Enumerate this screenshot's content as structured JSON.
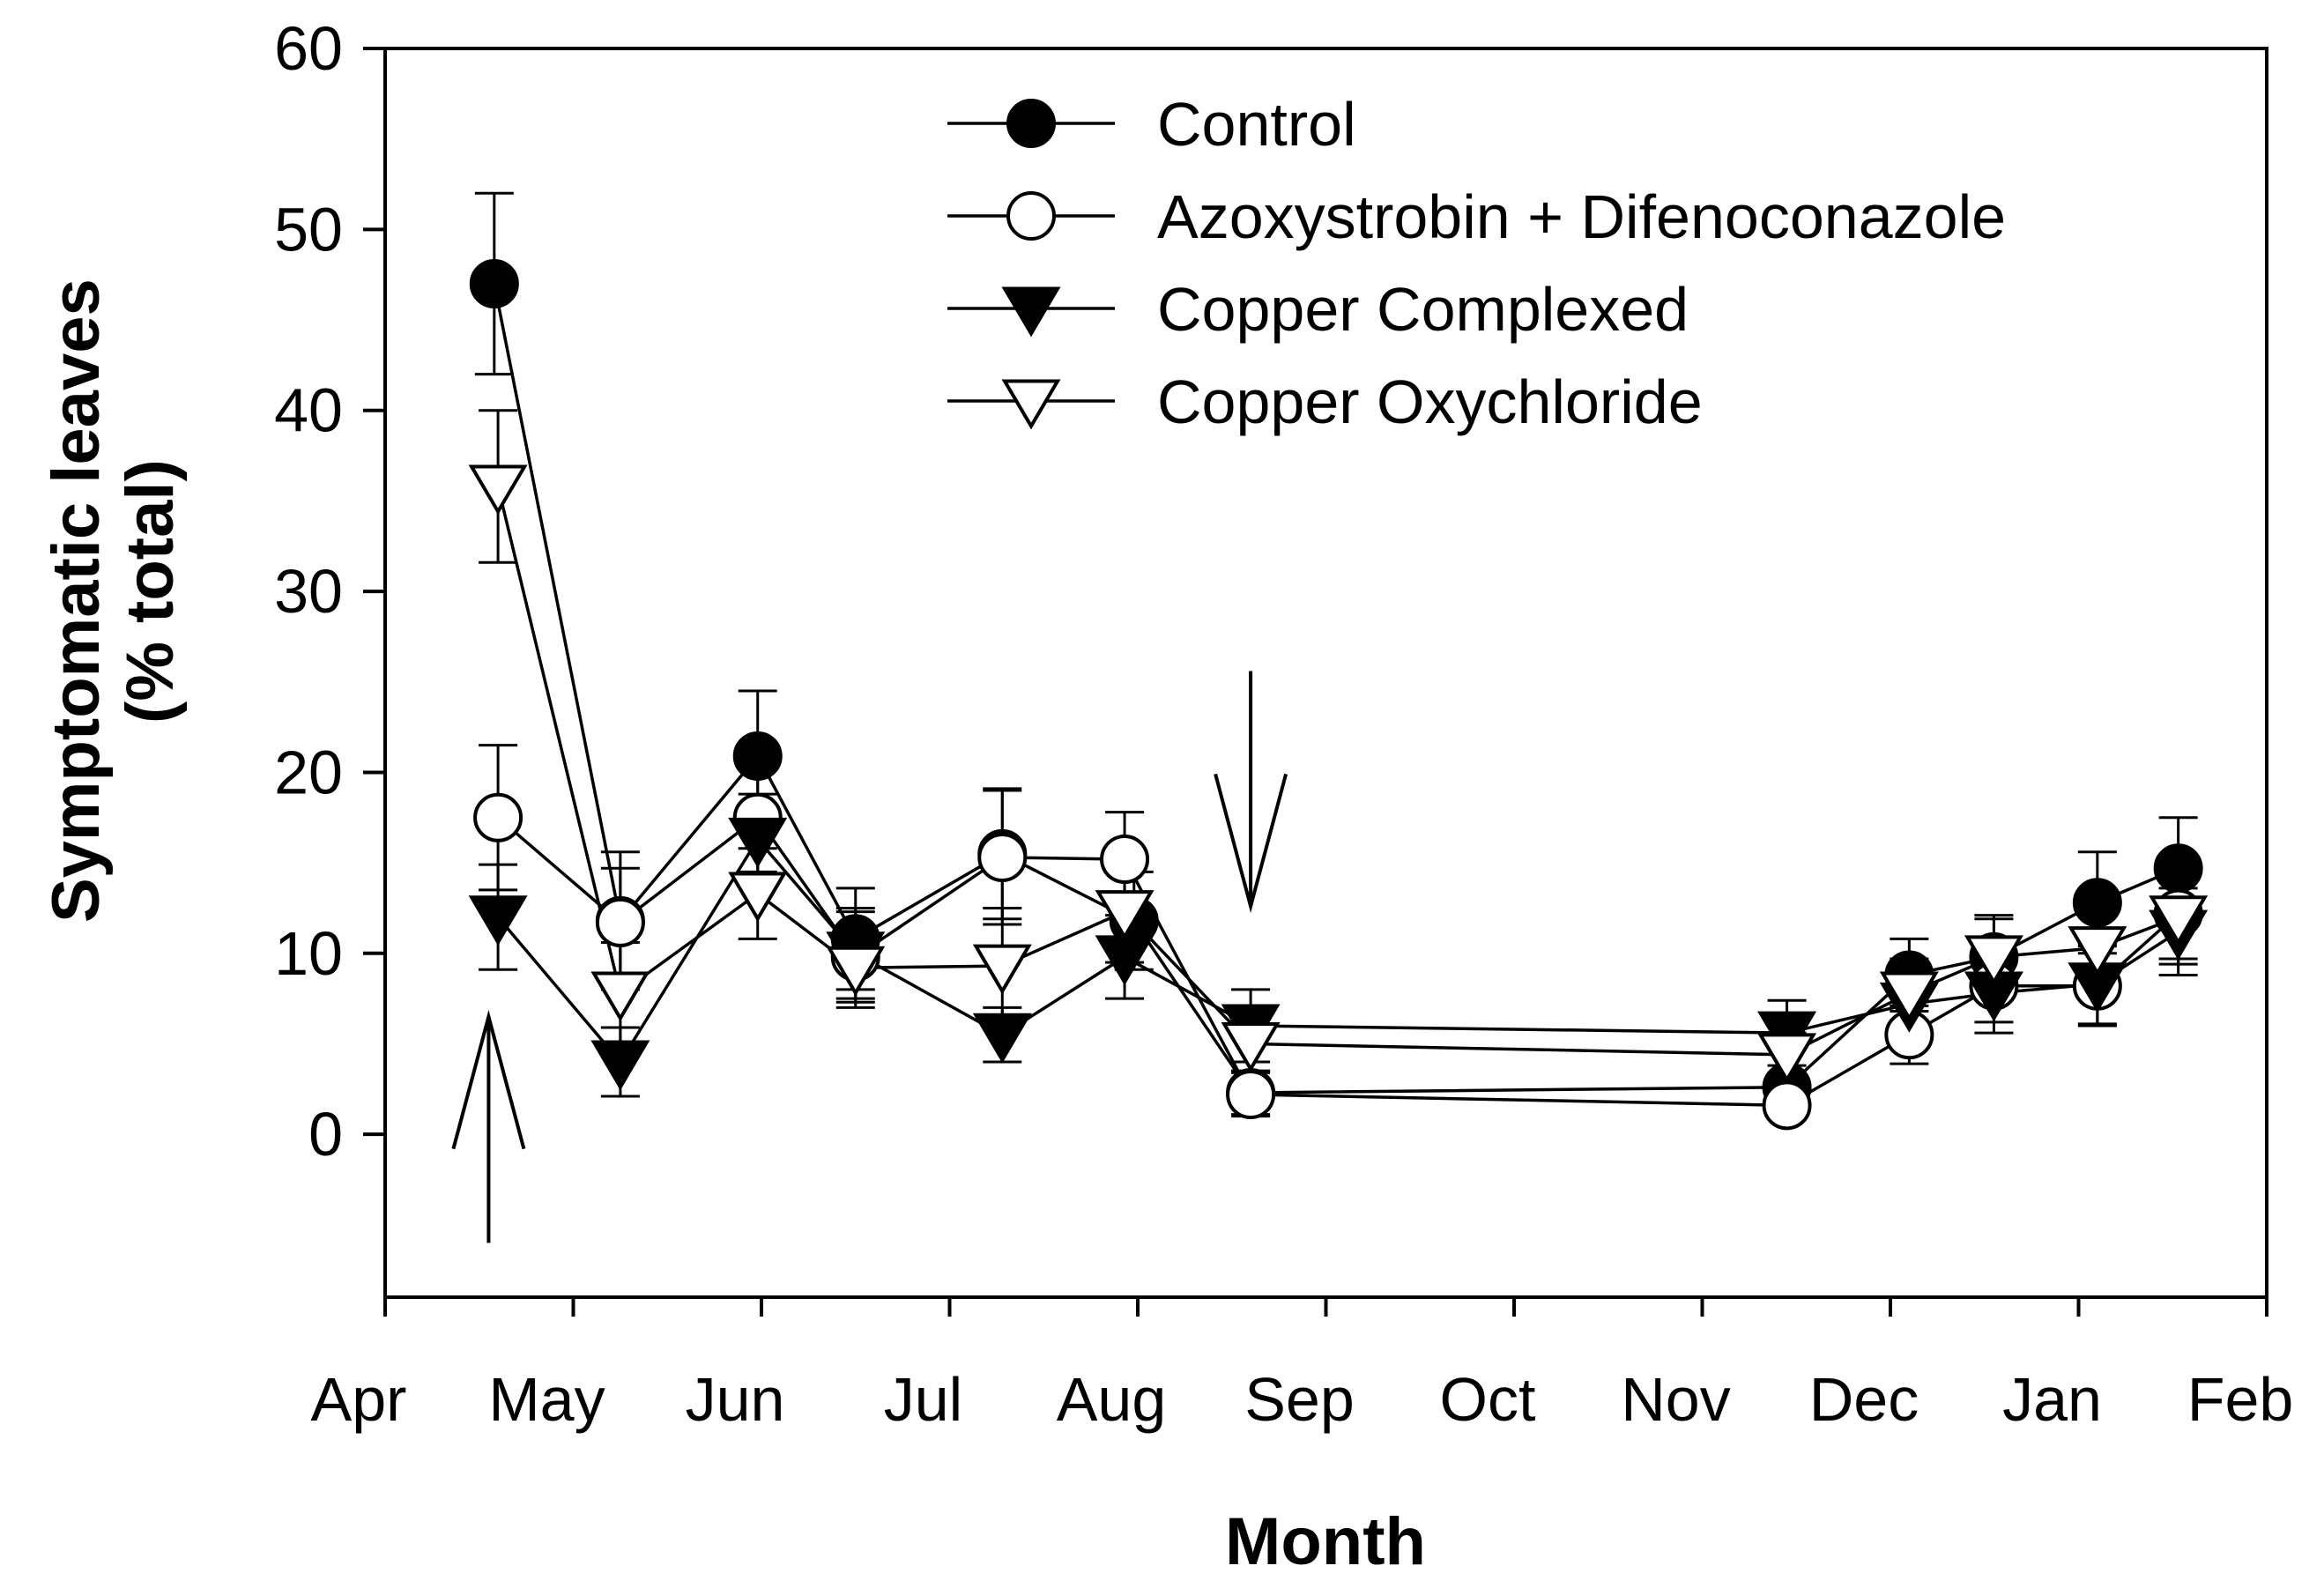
{
  "chart_data": {
    "type": "line",
    "title": "",
    "xlabel": "Month",
    "ylabel_lines": [
      "Symptomatic leaves",
      "(% total)"
    ],
    "x_unit": "month index (0 = start of Apr)",
    "xlim": [
      0,
      10
    ],
    "ylim": [
      -9,
      60
    ],
    "x_tick_values": [
      0,
      1,
      2,
      3,
      4,
      5,
      6,
      7,
      8,
      9,
      10
    ],
    "x_tick_labels": [
      "Apr",
      "May",
      "Jun",
      "Jul",
      "Aug",
      "Sep",
      "Oct",
      "Nov",
      "Dec",
      "Jan",
      "Feb"
    ],
    "y_tick_values": [
      0,
      10,
      20,
      30,
      40,
      50,
      60
    ],
    "y_tick_labels": [
      "0",
      "10",
      "20",
      "30",
      "40",
      "50",
      "60"
    ],
    "legend_position": "top-center",
    "annotations": [
      {
        "type": "arrow-up",
        "x": 0.55,
        "y_from": -6,
        "y_to": 6.5
      },
      {
        "type": "arrow-down",
        "x": 4.6,
        "y_from": 25.6,
        "y_to": 12.6
      }
    ],
    "series": [
      {
        "name": "Control",
        "marker": "filled-circle",
        "x": [
          0.58,
          1.25,
          1.98,
          2.5,
          3.28,
          3.98,
          4.6,
          7.45,
          8.1,
          8.55,
          9.1,
          9.53
        ],
        "y": [
          47,
          11.8,
          20.9,
          10.8,
          15.5,
          11.8,
          2.3,
          2.6,
          8.8,
          9.8,
          12.8,
          14.7
        ],
        "err": [
          5,
          3.8,
          3.6,
          2.8,
          3.6,
          2.7,
          1.2,
          0.8,
          2,
          2.3,
          2.8,
          2.8
        ]
      },
      {
        "name": "Azoxystrobin + Difenoconazole",
        "marker": "open-circle",
        "x": [
          0.6,
          1.25,
          1.98,
          2.5,
          3.28,
          3.93,
          4.6,
          7.45,
          8.1,
          8.55,
          9.1,
          9.53
        ],
        "y": [
          17.5,
          11.7,
          17.5,
          9.8,
          15.3,
          15.2,
          2.2,
          1.6,
          5.5,
          8.2,
          8.2,
          12.2
        ],
        "err": [
          4,
          3,
          3,
          2.5,
          3.7,
          2.6,
          1.2,
          0.5,
          1.6,
          2,
          2.2,
          2.5
        ]
      },
      {
        "name": "Copper Complexed",
        "marker": "filled-down-triangle",
        "x": [
          0.6,
          1.25,
          1.98,
          2.5,
          3.28,
          3.93,
          4.6,
          7.45,
          8.1,
          8.55,
          9.1,
          9.53
        ],
        "y": [
          12,
          4,
          16.3,
          10,
          5.5,
          9.8,
          6,
          5.6,
          7.2,
          7.8,
          8.3,
          11.2
        ],
        "err": [
          2.9,
          1.9,
          2.5,
          2.5,
          1.5,
          2.3,
          2,
          1.8,
          2.1,
          2.2,
          2.2,
          2.4
        ]
      },
      {
        "name": "Copper Oxychloride",
        "marker": "open-down-triangle",
        "x": [
          0.6,
          1.25,
          1.98,
          2.5,
          3.28,
          3.93,
          4.6,
          7.45,
          8.1,
          8.55,
          9.1,
          9.53
        ],
        "y": [
          35.8,
          7.8,
          13.3,
          9.2,
          9.3,
          12.3,
          5,
          4.4,
          7.8,
          9.8,
          10.3,
          12
        ],
        "err": [
          4.2,
          2.8,
          2.5,
          2.2,
          3.2,
          2.8,
          1.5,
          1.2,
          1.9,
          2.1,
          2.5,
          2.6
        ]
      }
    ]
  }
}
